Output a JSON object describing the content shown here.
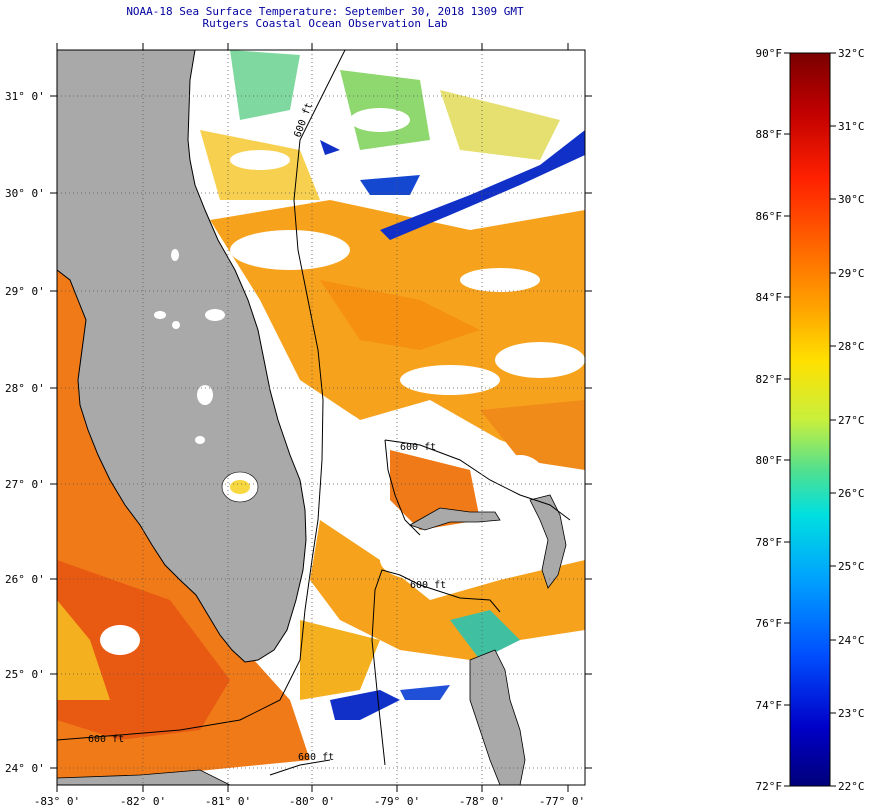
{
  "title": {
    "line1": "NOAA-18 Sea Surface Temperature:  September 30, 2018 1309 GMT",
    "line2": "Rutgers Coastal Ocean Observation Lab"
  },
  "axes": {
    "latitude_labels": [
      "31° 0'",
      "30° 0'",
      "29° 0'",
      "28° 0'",
      "27° 0'",
      "26° 0'",
      "25° 0'",
      "24° 0'"
    ],
    "longitude_labels": [
      "-83° 0'",
      "-82° 0'",
      "-81° 0'",
      "-80° 0'",
      "-79° 0'",
      "-78° 0'",
      "-77° 0'"
    ]
  },
  "contours": {
    "label": "600 ft"
  },
  "colorbar": {
    "fahrenheit_labels": [
      "90°F",
      "88°F",
      "86°F",
      "84°F",
      "82°F",
      "80°F",
      "78°F",
      "76°F",
      "74°F",
      "72°F"
    ],
    "celsius_labels": [
      "32°C",
      "31°C",
      "30°C",
      "29°C",
      "28°C",
      "27°C",
      "26°C",
      "25°C",
      "24°C",
      "23°C",
      "22°C"
    ],
    "colors": [
      "#7a0000",
      "#c00000",
      "#ff2000",
      "#ff6a00",
      "#ffa500",
      "#ffe000",
      "#c8f03c",
      "#50e090",
      "#00e0e0",
      "#00a0ff",
      "#0050ff",
      "#0000c8",
      "#00007a"
    ]
  },
  "colors": {
    "land": "#a9a9a9",
    "cloud": "#ffffff",
    "warm_water": "#f7a21c",
    "hot_water": "#f06a10",
    "cool_water": "#1030c8",
    "title_text": "#0000a0"
  }
}
